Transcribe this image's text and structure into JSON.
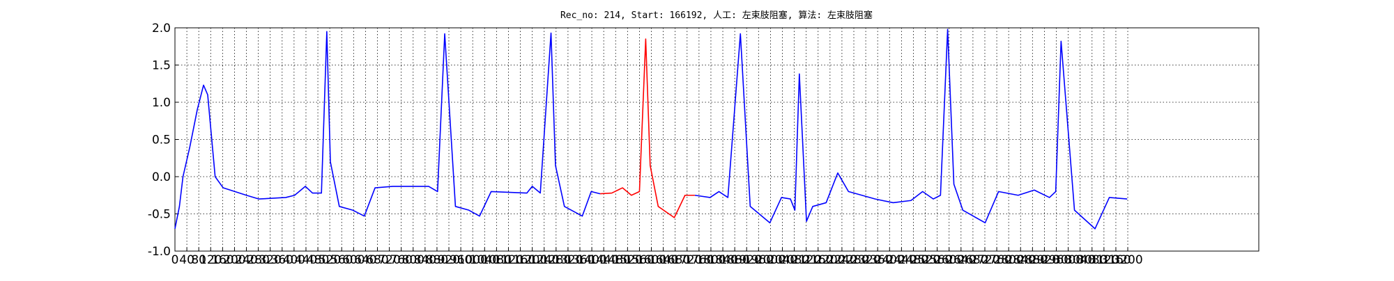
{
  "chart_data": {
    "type": "line",
    "title": "Rec_no: 214, Start: 166192, 人工: 左束肢阻塞, 算法: 左束肢阻塞",
    "x": [
      0,
      15,
      27,
      50,
      75,
      96,
      110,
      135,
      162,
      240,
      282,
      372,
      402,
      438,
      462,
      492,
      510,
      522,
      552,
      597,
      636,
      672,
      732,
      852,
      882,
      906,
      942,
      987,
      1023,
      1062,
      1182,
      1200,
      1227,
      1263,
      1278,
      1308,
      1368,
      1398,
      1428,
      1467,
      1503,
      1533,
      1560,
      1581,
      1596,
      1623,
      1677,
      1713,
      1746,
      1797,
      1827,
      1857,
      1899,
      1932,
      1998,
      2037,
      2067,
      2082,
      2097,
      2121,
      2142,
      2187,
      2226,
      2262,
      2352,
      2412,
      2472,
      2511,
      2547,
      2571,
      2595,
      2616,
      2646,
      2721,
      2766,
      2832,
      2886,
      2937,
      2958,
      2976,
      3021,
      3090,
      3138,
      3198
    ],
    "series": [
      {
        "color": "#0000ff",
        "values": [
          -0.7,
          -0.4,
          0.0,
          0.4,
          0.9,
          1.23,
          1.1,
          0.0,
          -0.15,
          -0.25,
          -0.3,
          -0.28,
          -0.25,
          -0.13,
          -0.22,
          -0.22,
          1.95,
          0.2,
          -0.4,
          -0.45,
          -0.53,
          -0.15,
          -0.13,
          -0.13,
          -0.2,
          1.92,
          -0.4,
          -0.45,
          -0.53,
          -0.2,
          -0.22,
          -0.13,
          -0.22,
          1.93,
          0.15,
          -0.4,
          -0.53,
          -0.2,
          -0.23,
          null,
          null,
          null,
          null,
          null,
          null,
          null,
          null,
          null,
          -0.25,
          -0.28,
          -0.2,
          -0.28,
          1.92,
          -0.4,
          -0.62,
          -0.28,
          -0.3,
          -0.45,
          1.38,
          -0.6,
          -0.4,
          -0.35,
          0.05,
          -0.2,
          -0.3,
          -0.35,
          -0.32,
          -0.2,
          -0.3,
          -0.25,
          1.98,
          -0.1,
          -0.45,
          -0.62,
          -0.2,
          -0.25,
          -0.18,
          -0.28,
          -0.2,
          1.82,
          -0.45,
          -0.7,
          -0.28,
          -0.3
        ]
      },
      {
        "color": "#ff0000",
        "values": [
          null,
          null,
          null,
          null,
          null,
          null,
          null,
          null,
          null,
          null,
          null,
          null,
          null,
          null,
          null,
          null,
          null,
          null,
          null,
          null,
          null,
          null,
          null,
          null,
          null,
          null,
          null,
          null,
          null,
          null,
          null,
          null,
          null,
          null,
          null,
          null,
          null,
          null,
          -0.23,
          -0.22,
          -0.15,
          -0.25,
          -0.2,
          1.85,
          0.15,
          -0.4,
          -0.55,
          -0.25,
          -0.25,
          null,
          null,
          null,
          null,
          null,
          null,
          null,
          null,
          null,
          null,
          null,
          null,
          null,
          null,
          null,
          null,
          null,
          null,
          null,
          null,
          null,
          null,
          null,
          null,
          null,
          null,
          null,
          null,
          null,
          null,
          null,
          null,
          null,
          null,
          null
        ]
      }
    ],
    "xlim": [
      0,
      3640
    ],
    "xticks": [
      0,
      40,
      80,
      120,
      160,
      200,
      240,
      280,
      320,
      360,
      400,
      440,
      480,
      520,
      560,
      600,
      640,
      680,
      720,
      760,
      800,
      840,
      880,
      920,
      960,
      1000,
      1040,
      1080,
      1120,
      1160,
      1200,
      1240,
      1280,
      1320,
      1360,
      1400,
      1440,
      1480,
      1520,
      1560,
      1600,
      1640,
      1680,
      1720,
      1760,
      1800,
      1840,
      1880,
      1920,
      1960,
      2000,
      2040,
      2080,
      2120,
      2160,
      2200,
      2240,
      2280,
      2320,
      2360,
      2400,
      2440,
      2480,
      2520,
      2560,
      2600,
      2640,
      2680,
      2720,
      2760,
      2800,
      2840,
      2880,
      2920,
      2960,
      3000,
      3040,
      3080,
      3120,
      3160,
      3200
    ],
    "ylim": [
      -1.0,
      2.0
    ],
    "yticks": [
      {
        "value": -1.0,
        "label": "-1.0"
      },
      {
        "value": -0.5,
        "label": "-0.5"
      },
      {
        "value": 0,
        "label": "0.0"
      },
      {
        "value": 0.5,
        "label": "0.5"
      },
      {
        "value": 1.0,
        "label": "1.0"
      },
      {
        "value": 1.5,
        "label": "1.5"
      },
      {
        "value": 2.0,
        "label": "2.0"
      }
    ],
    "grid": true
  }
}
